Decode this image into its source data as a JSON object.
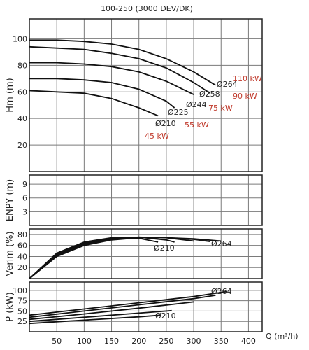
{
  "chart_data": {
    "type": "line",
    "title": "100-250 (3000 DEV/DK)",
    "xlabel": "Q (m³/h)",
    "x_ticks": [
      50,
      100,
      150,
      200,
      250,
      300,
      350,
      400
    ],
    "xlim": [
      0,
      425
    ],
    "panels": [
      {
        "id": "head",
        "ylabel": "Hm (m)",
        "ylim": [
          0,
          115
        ],
        "y_ticks": [
          20,
          40,
          60,
          80,
          100
        ],
        "series": [
          {
            "name": "Ø264",
            "x": [
              0,
              50,
              100,
              150,
              200,
              250,
              300,
              340
            ],
            "y": [
              99,
              99,
              98,
              96,
              92,
              85,
              75,
              65
            ]
          },
          {
            "name": "Ø258",
            "x": [
              0,
              50,
              100,
              150,
              200,
              250,
              300,
              330
            ],
            "y": [
              94,
              93,
              92,
              89,
              85,
              78,
              67,
              59
            ]
          },
          {
            "name": "Ø244",
            "x": [
              0,
              50,
              100,
              150,
              200,
              250,
              300
            ],
            "y": [
              82,
              82,
              81,
              79,
              75,
              68,
              58
            ]
          },
          {
            "name": "Ø225",
            "x": [
              0,
              50,
              100,
              150,
              200,
              250,
              265
            ],
            "y": [
              70,
              70,
              69,
              67,
              62,
              53,
              48
            ]
          },
          {
            "name": "Ø210",
            "x": [
              0,
              50,
              100,
              150,
              200,
              235
            ],
            "y": [
              61,
              60,
              59,
              55,
              48,
              42
            ]
          }
        ],
        "diameter_labels": [
          "Ø264",
          "Ø258",
          "Ø244",
          "Ø225",
          "Ø210"
        ],
        "power_labels": [
          "110 kW",
          "90 kW",
          "75 kW",
          "55 kW",
          "45 kW"
        ]
      },
      {
        "id": "npsh",
        "ylabel": "ENPY (m)",
        "ylim": [
          0,
          11
        ],
        "y_ticks": [
          3,
          6,
          9
        ],
        "series": []
      },
      {
        "id": "efficiency",
        "ylabel": "Verim (%)",
        "ylim": [
          0,
          90
        ],
        "y_ticks": [
          20,
          40,
          60,
          80
        ],
        "series": [
          {
            "name": "Ø264",
            "x": [
              0,
              50,
              100,
              150,
              200,
              250,
              300,
              350
            ],
            "y": [
              0,
              40,
              60,
              70,
              74,
              74,
              72,
              68
            ]
          },
          {
            "name": "Ø258",
            "x": [
              0,
              50,
              100,
              150,
              200,
              250,
              300,
              330
            ],
            "y": [
              0,
              41,
              61,
              71,
              74,
              74,
              71,
              67
            ]
          },
          {
            "name": "Ø244",
            "x": [
              0,
              50,
              100,
              150,
              200,
              250,
              300
            ],
            "y": [
              0,
              43,
              63,
              72,
              75,
              74,
              68
            ]
          },
          {
            "name": "Ø225",
            "x": [
              0,
              50,
              100,
              150,
              200,
              250,
              265
            ],
            "y": [
              0,
              44,
              65,
              73,
              75,
              70,
              66
            ]
          },
          {
            "name": "Ø210",
            "x": [
              0,
              50,
              100,
              150,
              200,
              235
            ],
            "y": [
              0,
              46,
              66,
              74,
              73,
              66
            ]
          }
        ],
        "diameter_labels": [
          "Ø264",
          "Ø210"
        ]
      },
      {
        "id": "power",
        "ylabel": "P (kW)",
        "ylim": [
          0,
          120
        ],
        "y_ticks": [
          25,
          50,
          75,
          100
        ],
        "series": [
          {
            "name": "Ø264",
            "x": [
              0,
              100,
              200,
              300,
              360
            ],
            "y": [
              40,
              55,
              70,
              85,
              97
            ]
          },
          {
            "name": "Ø258",
            "x": [
              0,
              100,
              200,
              300,
              340
            ],
            "y": [
              35,
              50,
              65,
              80,
              88
            ]
          },
          {
            "name": "Ø244",
            "x": [
              0,
              100,
              200,
              300
            ],
            "y": [
              30,
              43,
              57,
              72
            ]
          },
          {
            "name": "Ø225",
            "x": [
              0,
              100,
              200,
              260
            ],
            "y": [
              25,
              35,
              45,
              51
            ]
          },
          {
            "name": "Ø210",
            "x": [
              0,
              100,
              200,
              240
            ],
            "y": [
              20,
              28,
              36,
              40
            ]
          }
        ],
        "diameter_labels": [
          "Ø264",
          "Ø210"
        ]
      }
    ]
  }
}
